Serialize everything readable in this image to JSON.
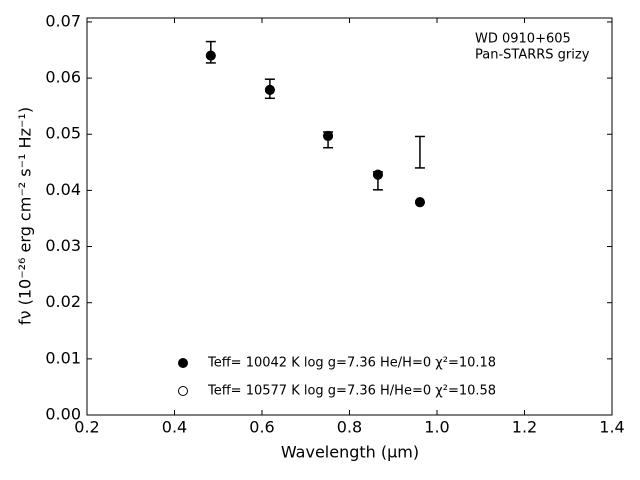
{
  "chart_data": {
    "type": "scatter",
    "xlabel": "Wavelength (μm)",
    "ylabel": "fν (10⁻²⁶ erg cm⁻² s⁻¹ Hz⁻¹)",
    "annotations": [
      "WD 0910+605",
      "Pan-STARRS grizy"
    ],
    "xlim": [
      0.2,
      1.4
    ],
    "ylim": [
      0,
      0.0707
    ],
    "xticks": [
      0.2,
      0.4,
      0.6,
      0.8,
      {
        "value": 1,
        "label": "1.0"
      },
      1.2,
      1.4
    ],
    "yticks": [
      {
        "value": 0,
        "label": "0.00"
      },
      0.01,
      0.02,
      0.03,
      0.04,
      0.05,
      0.06,
      0.07
    ],
    "legend": "lower center",
    "observed": {
      "x": [
        0.483,
        0.618,
        0.751,
        0.865,
        0.961
      ],
      "values": [
        0.0646,
        0.0581,
        0.049,
        0.0417,
        0.0468
      ],
      "errors": [
        0.0019,
        0.0017,
        0.0014,
        0.0016,
        0.0028
      ],
      "color": "#000000"
    },
    "series": [
      {
        "name": "Teff= 10042 K  log g=7.36  He/H=0  χ²=10.18",
        "marker": "filled",
        "color": "#000000",
        "x": [
          0.483,
          0.618,
          0.751,
          0.865,
          0.961
        ],
        "values": [
          0.064,
          0.0579,
          0.0497,
          0.0428,
          0.0379
        ]
      },
      {
        "name": "Teff= 10577 K  log g=7.36  H/He=0  χ²=10.58",
        "marker": "open",
        "color": "#000000",
        "x": [
          0.483,
          0.618,
          0.751,
          0.865,
          0.961
        ],
        "values": [
          0.064,
          0.0579,
          0.0497,
          0.0428,
          0.0379
        ]
      }
    ]
  }
}
